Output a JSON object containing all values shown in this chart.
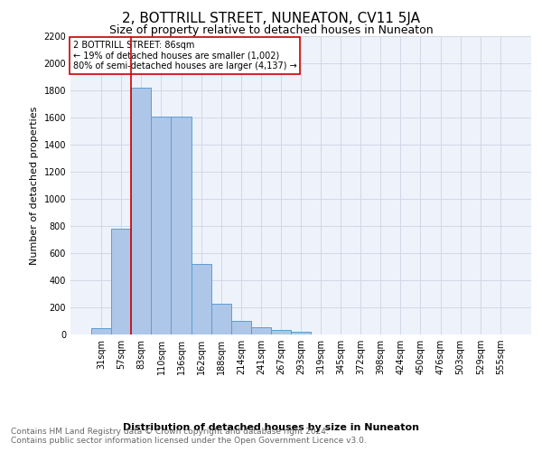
{
  "title": "2, BOTTRILL STREET, NUNEATON, CV11 5JA",
  "subtitle": "Size of property relative to detached houses in Nuneaton",
  "xlabel": "Distribution of detached houses by size in Nuneaton",
  "ylabel": "Number of detached properties",
  "footer_line1": "Contains HM Land Registry data © Crown copyright and database right 2024.",
  "footer_line2": "Contains public sector information licensed under the Open Government Licence v3.0.",
  "bar_labels": [
    "31sqm",
    "57sqm",
    "83sqm",
    "110sqm",
    "136sqm",
    "162sqm",
    "188sqm",
    "214sqm",
    "241sqm",
    "267sqm",
    "293sqm",
    "319sqm",
    "345sqm",
    "372sqm",
    "398sqm",
    "424sqm",
    "450sqm",
    "476sqm",
    "503sqm",
    "529sqm",
    "555sqm"
  ],
  "bar_values": [
    50,
    780,
    1820,
    1610,
    1610,
    520,
    230,
    100,
    55,
    35,
    20,
    0,
    0,
    0,
    0,
    0,
    0,
    0,
    0,
    0,
    0
  ],
  "bar_color": "#aec6e8",
  "bar_edge_color": "#5a9fd4",
  "grid_color": "#d0d8e8",
  "background_color": "#eef2fa",
  "vline_color": "#cc0000",
  "annotation_text": "2 BOTTRILL STREET: 86sqm\n← 19% of detached houses are smaller (1,002)\n80% of semi-detached houses are larger (4,137) →",
  "annotation_box_color": "#ffffff",
  "annotation_box_edge": "#cc0000",
  "ylim": [
    0,
    2200
  ],
  "yticks": [
    0,
    200,
    400,
    600,
    800,
    1000,
    1200,
    1400,
    1600,
    1800,
    2000,
    2200
  ],
  "title_fontsize": 11,
  "subtitle_fontsize": 9,
  "axis_label_fontsize": 8,
  "tick_fontsize": 7,
  "annotation_fontsize": 7,
  "footer_fontsize": 6.5
}
